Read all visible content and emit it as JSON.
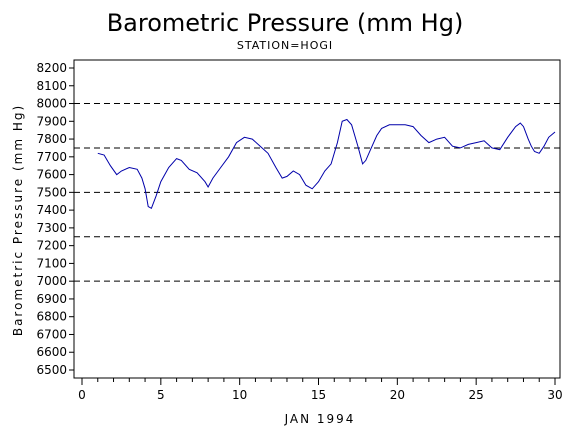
{
  "chart_data": {
    "type": "line",
    "title": "Barometric Pressure (mm Hg)",
    "subtitle": "STATION=HOGI",
    "xlabel": "JAN 1994",
    "ylabel": "Barometric Pressure (mm Hg)",
    "xlim": [
      0,
      30
    ],
    "ylim": [
      6500,
      8200
    ],
    "x_ticks": [
      0,
      5,
      10,
      15,
      20,
      25,
      30
    ],
    "y_ticks": [
      6500,
      6600,
      6700,
      6800,
      6900,
      7000,
      7100,
      7200,
      7300,
      7400,
      7500,
      7600,
      7700,
      7800,
      7900,
      8000,
      8100,
      8200
    ],
    "reference_lines": [
      7000,
      7250,
      7500,
      7750,
      8000
    ],
    "legend": "none",
    "grid": false,
    "colors": {
      "series": "#0000aa",
      "axes": "#000000",
      "reference": "#000000"
    },
    "series": [
      {
        "x": [
          1.0,
          1.4,
          1.8,
          2.2,
          2.5,
          3.0,
          3.5,
          3.8,
          4.0,
          4.2,
          4.4,
          4.7,
          5.0,
          5.5,
          6.0,
          6.3,
          6.8,
          7.3,
          7.8,
          8.0,
          8.3,
          8.8,
          9.3,
          9.8,
          10.3,
          10.8,
          11.3,
          11.8,
          12.3,
          12.7,
          13.0,
          13.4,
          13.8,
          14.2,
          14.6,
          15.0,
          15.4,
          15.8,
          16.2,
          16.5,
          16.8,
          17.1,
          17.5,
          17.8,
          18.0,
          18.3,
          18.7,
          19.0,
          19.5,
          20.0,
          20.5,
          21.0,
          21.5,
          22.0,
          22.5,
          23.0,
          23.5,
          24.0,
          24.5,
          25.0,
          25.5,
          26.0,
          26.5,
          27.0,
          27.5,
          27.8,
          28.0,
          28.3,
          28.5,
          28.7,
          29.0,
          29.3,
          29.6,
          30.0
        ],
        "y": [
          7720,
          7710,
          7650,
          7600,
          7620,
          7640,
          7630,
          7580,
          7520,
          7420,
          7410,
          7480,
          7560,
          7640,
          7690,
          7680,
          7630,
          7610,
          7560,
          7530,
          7580,
          7640,
          7700,
          7780,
          7810,
          7800,
          7760,
          7720,
          7640,
          7580,
          7590,
          7620,
          7600,
          7540,
          7520,
          7560,
          7620,
          7660,
          7780,
          7900,
          7910,
          7880,
          7760,
          7660,
          7680,
          7740,
          7820,
          7860,
          7880,
          7880,
          7880,
          7870,
          7820,
          7780,
          7800,
          7810,
          7760,
          7750,
          7770,
          7780,
          7790,
          7750,
          7740,
          7810,
          7870,
          7890,
          7870,
          7800,
          7760,
          7730,
          7720,
          7760,
          7810,
          7840
        ]
      }
    ]
  }
}
